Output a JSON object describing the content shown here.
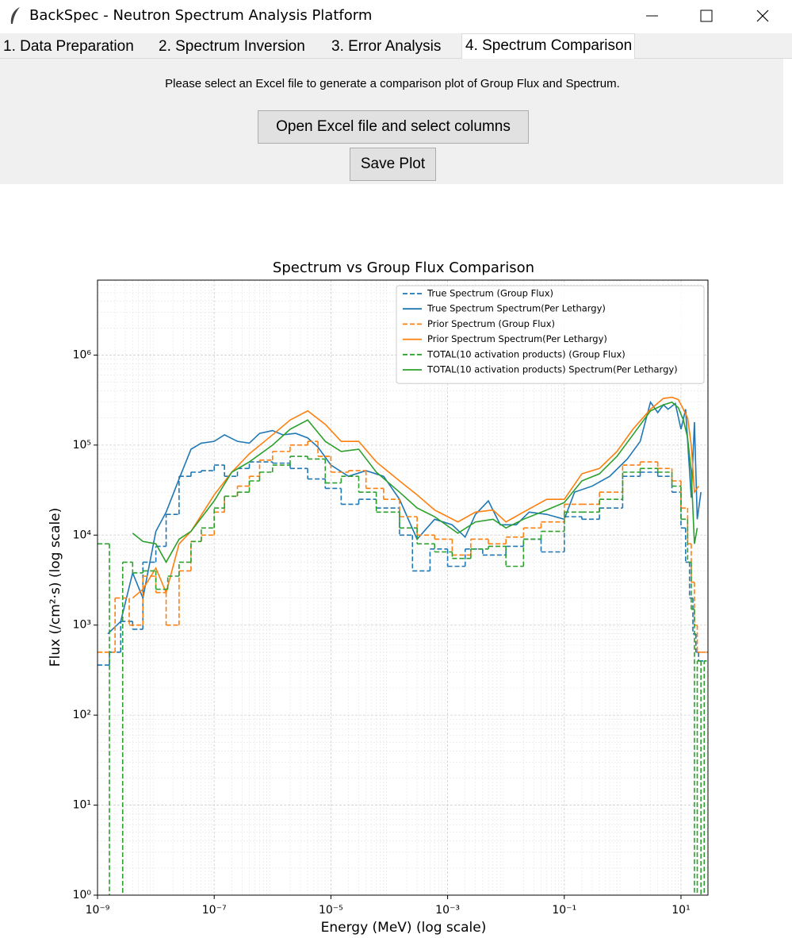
{
  "window": {
    "title": "BackSpec - Neutron Spectrum Analysis Platform"
  },
  "tabs": [
    "1.  Data Preparation",
    "2.  Spectrum Inversion",
    "3.  Error Analysis",
    "4. Spectrum Comparison"
  ],
  "active_tab": 3,
  "instruction": "Please select an Excel file to generate a comparison plot of Group Flux and Spectrum.",
  "buttons": [
    "Open Excel file and select columns",
    "Save Plot"
  ],
  "chart_data": {
    "type": "line",
    "title": "Spectrum vs Group Flux Comparison",
    "x_label": "Energy (MeV) (log scale)",
    "y_label": "Flux (/cm²·s) (log scale)",
    "xscale": "log",
    "yscale": "log",
    "grid": true,
    "minor_grid": true,
    "legend": "upper right",
    "xlim": [
      1e-09,
      29
    ],
    "ylim": [
      1,
      6800000
    ],
    "xticks": [
      {
        "value": 1e-09,
        "label": "10⁻⁹"
      },
      {
        "value": 1e-07,
        "label": "10⁻⁷"
      },
      {
        "value": 1e-05,
        "label": "10⁻⁵"
      },
      {
        "value": 0.001,
        "label": "10⁻³"
      },
      {
        "value": 0.1,
        "label": "10⁻¹"
      },
      {
        "value": 10,
        "label": "10¹"
      }
    ],
    "yticks": [
      {
        "value": 1,
        "label": "10⁰"
      },
      {
        "value": 10,
        "label": "10¹"
      },
      {
        "value": 100,
        "label": "10²"
      },
      {
        "value": 1000,
        "label": "10³"
      },
      {
        "value": 10000,
        "label": "10⁴"
      },
      {
        "value": 100000,
        "label": "10⁵"
      },
      {
        "value": 1000000,
        "label": "10⁶"
      }
    ],
    "series": [
      {
        "name": "True Spectrum (Group Flux)",
        "color": "#1f77b4",
        "style": "dashed",
        "step": true,
        "x": [
          1e-09,
          1.6e-09,
          2.5e-09,
          4e-09,
          6e-09,
          1e-08,
          1.5e-08,
          2.5e-08,
          4e-08,
          6e-08,
          1e-07,
          1.5e-07,
          2.5e-07,
          4e-07,
          1e-06,
          2e-06,
          4e-06,
          8e-06,
          1.5e-05,
          3e-05,
          6e-05,
          0.00015,
          0.00025,
          0.0005,
          0.001,
          0.002,
          0.004,
          0.01,
          0.02,
          0.04,
          0.1,
          0.2,
          0.4,
          1,
          2,
          4,
          7,
          10,
          12,
          14,
          16,
          18,
          20,
          25
        ],
        "values": [
          360,
          500,
          1100,
          900,
          5000,
          7500,
          17000,
          45000,
          50000,
          52000,
          60000,
          45000,
          55000,
          65000,
          63000,
          55000,
          42000,
          33000,
          22000,
          25000,
          20000,
          10000,
          4000,
          7000,
          4500,
          7000,
          6000,
          7500,
          9000,
          6500,
          16000,
          15000,
          20000,
          45000,
          50000,
          45000,
          30000,
          12000,
          5000,
          2000,
          800,
          500,
          400,
          400
        ]
      },
      {
        "name": "True Spectrum Spectrum(Per Lethargy)",
        "color": "#1f77b4",
        "style": "solid",
        "step": false,
        "x": [
          1.5e-09,
          2.5e-09,
          4e-09,
          6e-09,
          1e-08,
          1.5e-08,
          2.5e-08,
          4e-08,
          6e-08,
          1e-07,
          1.5e-07,
          2.5e-07,
          4e-07,
          6e-07,
          1e-06,
          1.5e-06,
          2.5e-06,
          4e-06,
          6e-06,
          1e-05,
          2e-05,
          4e-05,
          8e-05,
          0.00015,
          0.0003,
          0.0006,
          0.0012,
          0.002,
          0.003,
          0.005,
          0.008,
          0.015,
          0.025,
          0.05,
          0.1,
          0.15,
          0.3,
          0.6,
          1.2,
          2,
          3,
          4,
          5,
          6,
          8,
          10,
          12,
          15,
          17,
          19,
          22
        ],
        "values": [
          800,
          1100,
          3800,
          2000,
          11000,
          18000,
          42000,
          90000,
          105000,
          110000,
          130000,
          110000,
          105000,
          135000,
          145000,
          130000,
          135000,
          120000,
          95000,
          60000,
          45000,
          52000,
          45000,
          25000,
          9000,
          15000,
          13000,
          9500,
          17000,
          24000,
          13000,
          13000,
          18000,
          17000,
          15000,
          30000,
          35000,
          45000,
          70000,
          110000,
          300000,
          230000,
          280000,
          250000,
          290000,
          150000,
          250000,
          26000,
          180000,
          15000,
          30000
        ]
      },
      {
        "name": "Prior Spectrum (Group Flux)",
        "color": "#ff7f0e",
        "style": "dashed",
        "step": true,
        "x": [
          1e-09,
          2e-09,
          3.5e-09,
          6e-09,
          1e-08,
          1.5e-08,
          2.5e-08,
          4e-08,
          6e-08,
          1e-07,
          1.5e-07,
          2.5e-07,
          4e-07,
          6e-07,
          1e-06,
          2e-06,
          4e-06,
          6e-06,
          1e-05,
          2e-05,
          4e-05,
          8e-05,
          0.00015,
          0.0003,
          0.0006,
          0.0012,
          0.0025,
          0.005,
          0.01,
          0.02,
          0.04,
          0.1,
          0.2,
          0.4,
          1,
          2,
          4,
          7,
          10,
          13,
          15,
          17,
          19,
          22,
          27
        ],
        "values": [
          500,
          2000,
          1000,
          3500,
          2300,
          1000,
          4000,
          8500,
          10000,
          18000,
          27000,
          35000,
          45000,
          68000,
          85000,
          100000,
          110000,
          75000,
          50000,
          52000,
          33000,
          25000,
          16000,
          10000,
          9000,
          6000,
          9000,
          8000,
          9500,
          12000,
          14000,
          22000,
          22000,
          30000,
          60000,
          65000,
          55000,
          40000,
          20000,
          8000,
          3000,
          1000,
          500,
          500,
          500
        ]
      },
      {
        "name": "Prior Spectrum Spectrum(Per Lethargy)",
        "color": "#ff7f0e",
        "style": "solid",
        "step": false,
        "x": [
          4e-09,
          6e-09,
          1e-08,
          1.5e-08,
          2.5e-08,
          4e-08,
          1e-07,
          2e-07,
          4e-07,
          1e-06,
          2e-06,
          4e-06,
          8e-06,
          1.5e-05,
          3e-05,
          6e-05,
          0.00015,
          0.0003,
          0.0006,
          0.0015,
          0.003,
          0.006,
          0.01,
          0.02,
          0.05,
          0.1,
          0.2,
          0.4,
          0.8,
          1.5,
          3,
          5,
          7,
          9,
          11,
          13,
          15,
          17,
          20
        ],
        "values": [
          2000,
          2500,
          4300,
          2300,
          8000,
          11000,
          28000,
          50000,
          80000,
          130000,
          190000,
          240000,
          170000,
          110000,
          110000,
          65000,
          40000,
          28000,
          19000,
          14000,
          18000,
          19000,
          14000,
          18000,
          25000,
          25000,
          48000,
          55000,
          85000,
          150000,
          250000,
          330000,
          340000,
          320000,
          250000,
          200000,
          100000,
          30000,
          35000
        ]
      },
      {
        "name": "TOTAL(10 activation products) (Group Flux)",
        "color": "#2ca02c",
        "style": "dashed",
        "step": true,
        "x": [
          1e-09,
          1.6e-09,
          2.7e-09,
          4e-09,
          6e-09,
          1e-08,
          1.6e-08,
          2.5e-08,
          4e-08,
          6e-08,
          1e-07,
          1.5e-07,
          2.5e-07,
          4e-07,
          6e-07,
          1e-06,
          2e-06,
          4e-06,
          8e-06,
          1.5e-05,
          3e-05,
          6e-05,
          0.00015,
          0.0003,
          0.0006,
          0.0012,
          0.0025,
          0.005,
          0.01,
          0.02,
          0.04,
          0.1,
          0.2,
          0.4,
          1,
          2,
          4,
          7,
          10,
          13,
          15,
          17,
          19,
          22,
          25
        ],
        "values": [
          8000,
          0,
          5000,
          3800,
          4000,
          2500,
          3500,
          5000,
          8500,
          12000,
          20000,
          27000,
          30000,
          40000,
          50000,
          60000,
          75000,
          70000,
          38000,
          45000,
          30000,
          18000,
          12000,
          8000,
          6500,
          5500,
          7000,
          7500,
          4500,
          9000,
          11000,
          18000,
          18000,
          25000,
          50000,
          55000,
          50000,
          35000,
          15000,
          5000,
          1500,
          0,
          400,
          0,
          400
        ]
      },
      {
        "name": "TOTAL(10 activation products) Spectrum(Per Lethargy)",
        "color": "#2ca02c",
        "style": "solid",
        "step": false,
        "x": [
          4e-09,
          6e-09,
          1e-08,
          1.5e-08,
          2.5e-08,
          4e-08,
          1e-07,
          2e-07,
          4e-07,
          1e-06,
          2e-06,
          4e-06,
          8e-06,
          1.5e-05,
          3e-05,
          6e-05,
          0.00015,
          0.0003,
          0.0006,
          0.0015,
          0.003,
          0.006,
          0.01,
          0.02,
          0.05,
          0.1,
          0.2,
          0.4,
          0.8,
          1.5,
          3,
          5,
          7,
          9,
          11,
          13,
          15,
          17,
          19
        ],
        "values": [
          10500,
          8500,
          8000,
          5000,
          9000,
          11000,
          24000,
          50000,
          65000,
          100000,
          150000,
          190000,
          110000,
          85000,
          90000,
          50000,
          30000,
          20000,
          16000,
          10500,
          14000,
          15000,
          12000,
          15000,
          19000,
          23000,
          40000,
          48000,
          75000,
          130000,
          240000,
          280000,
          300000,
          260000,
          190000,
          120000,
          50000,
          8000,
          12000
        ]
      }
    ]
  }
}
